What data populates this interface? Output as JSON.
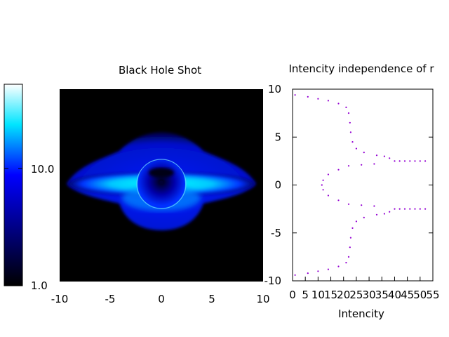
{
  "chart_data": [
    {
      "type": "heatmap",
      "title": "Black Hole Shot",
      "xlabel": "",
      "ylabel": "",
      "xlim": [
        -10,
        10
      ],
      "ylim": [
        -10,
        10
      ],
      "xticks": [
        -10,
        -5,
        0,
        5,
        10
      ],
      "colorbar": {
        "scale": "log",
        "range": [
          1.0,
          30.0
        ],
        "ticks": [
          1.0,
          10.0
        ],
        "tick_labels": [
          "1.0",
          "10.0"
        ],
        "colors": [
          "#000000",
          "#0000ff",
          "#00ffff",
          "#ffffff"
        ]
      },
      "image_description": "black background with a blue/cyan disk of intensity around a dark central shadow of radius ~2.6"
    },
    {
      "type": "scatter",
      "title": "Intencity independence of r",
      "xlabel": "Intencity",
      "ylabel": "",
      "xlim": [
        0,
        55
      ],
      "ylim": [
        -10,
        10
      ],
      "xticks": [
        0,
        5,
        10,
        15,
        20,
        25,
        30,
        35,
        40,
        45,
        50,
        55
      ],
      "yticks": [
        10,
        5,
        0,
        -5,
        -10
      ],
      "marker_color": "#9400d3",
      "series": [
        {
          "points": [
            [
              1,
              9.4
            ],
            [
              6,
              9.2
            ],
            [
              10,
              9.0
            ],
            [
              14,
              8.8
            ],
            [
              18,
              8.5
            ],
            [
              21,
              8.1
            ],
            [
              22,
              7.5
            ],
            [
              22.5,
              6.5
            ],
            [
              22.8,
              5.5
            ],
            [
              23.5,
              4.5
            ],
            [
              25,
              3.8
            ],
            [
              28,
              3.4
            ],
            [
              33,
              3.1
            ],
            [
              36,
              3.0
            ],
            [
              38,
              2.8
            ],
            [
              40,
              2.5
            ],
            [
              42,
              2.5
            ],
            [
              44,
              2.5
            ],
            [
              46,
              2.5
            ],
            [
              48,
              2.5
            ],
            [
              50,
              2.5
            ],
            [
              52,
              2.5
            ],
            [
              32,
              2.2
            ],
            [
              27,
              2.1
            ],
            [
              22,
              2.0
            ],
            [
              18,
              1.6
            ],
            [
              14,
              1.1
            ],
            [
              12,
              0.5
            ],
            [
              11.5,
              0
            ],
            [
              12,
              -0.5
            ],
            [
              14,
              -1.1
            ],
            [
              18,
              -1.6
            ],
            [
              22,
              -2.0
            ],
            [
              27,
              -2.1
            ],
            [
              32,
              -2.2
            ],
            [
              40,
              -2.5
            ],
            [
              42,
              -2.5
            ],
            [
              44,
              -2.5
            ],
            [
              46,
              -2.5
            ],
            [
              48,
              -2.5
            ],
            [
              50,
              -2.5
            ],
            [
              52,
              -2.5
            ],
            [
              38,
              -2.8
            ],
            [
              36,
              -3.0
            ],
            [
              33,
              -3.1
            ],
            [
              28,
              -3.4
            ],
            [
              25,
              -3.8
            ],
            [
              23.5,
              -4.5
            ],
            [
              22.8,
              -5.5
            ],
            [
              22.5,
              -6.5
            ],
            [
              22,
              -7.5
            ],
            [
              21,
              -8.1
            ],
            [
              18,
              -8.5
            ],
            [
              14,
              -8.8
            ],
            [
              10,
              -9.0
            ],
            [
              6,
              -9.2
            ],
            [
              1,
              -9.4
            ]
          ]
        }
      ]
    }
  ]
}
